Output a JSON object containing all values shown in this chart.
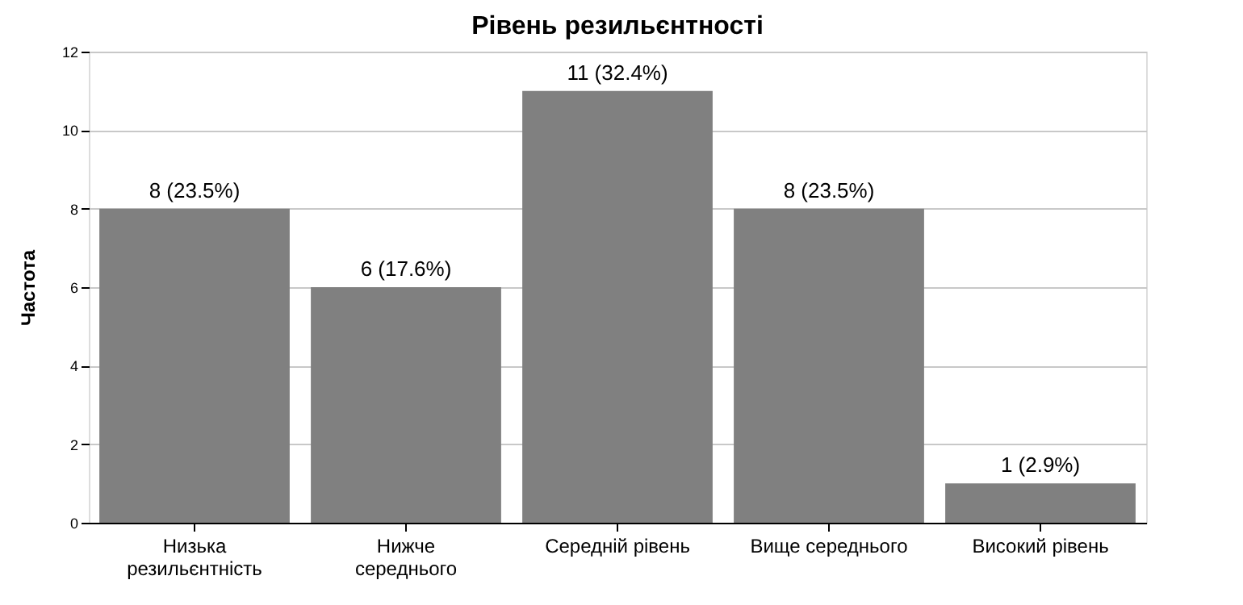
{
  "chart_data": {
    "type": "bar",
    "title": "Рівень резильєнтності",
    "ylabel": "Частота",
    "categories": [
      "Низька резильєнтність",
      "Нижче середнього",
      "Середній рівень",
      "Вище середнього",
      "Високий рівень"
    ],
    "values": [
      8,
      6,
      11,
      8,
      1
    ],
    "value_labels": [
      "8 (23.5%)",
      "6 (17.6%)",
      "11 (32.4%)",
      "8 (23.5%)",
      "1 (2.9%)"
    ],
    "color": "#808080",
    "ylim": [
      0,
      12
    ],
    "yticks": [
      0,
      2,
      4,
      6,
      8,
      10,
      12
    ],
    "grid": "y"
  }
}
